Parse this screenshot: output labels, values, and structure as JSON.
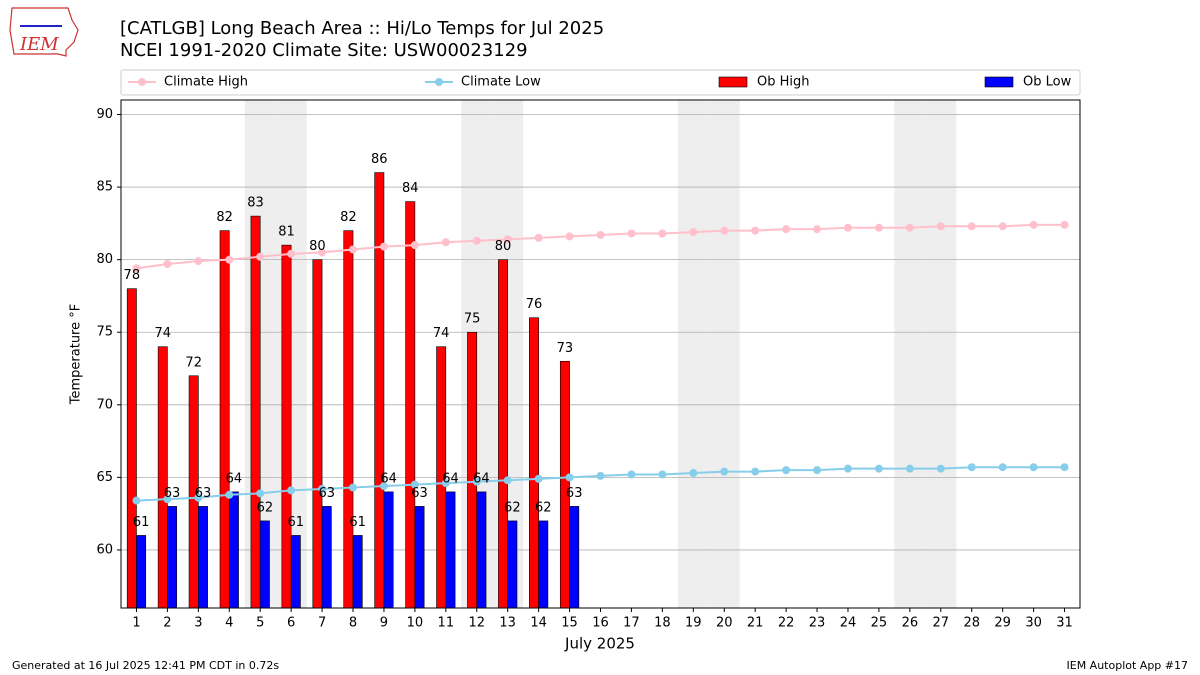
{
  "chart_data": {
    "type": "bar_line",
    "title": "[CATLGB] Long Beach Area :: Hi/Lo Temps for Jul 2025",
    "subtitle": "NCEI 1991-2020 Climate Site: USW00023129",
    "x_label": "July 2025",
    "y_label": "Temperature °F",
    "logo": "IEM",
    "footer_left": "Generated at 16 Jul 2025 12:41 PM CDT in 0.72s",
    "footer_right": "IEM Autoplot App #17",
    "x": [
      1,
      2,
      3,
      4,
      5,
      6,
      7,
      8,
      9,
      10,
      11,
      12,
      13,
      14,
      15,
      16,
      17,
      18,
      19,
      20,
      21,
      22,
      23,
      24,
      25,
      26,
      27,
      28,
      29,
      30,
      31
    ],
    "xlim": [
      0.5,
      31.5
    ],
    "xticks": [
      1,
      2,
      3,
      4,
      5,
      6,
      7,
      8,
      9,
      10,
      11,
      12,
      13,
      14,
      15,
      16,
      17,
      18,
      19,
      20,
      21,
      22,
      23,
      24,
      25,
      26,
      27,
      28,
      29,
      30,
      31
    ],
    "ylim": [
      56,
      91
    ],
    "yticks": [
      60,
      65,
      70,
      75,
      80,
      85,
      90
    ],
    "grid": true,
    "legend": "top",
    "shaded_days": [
      5,
      6,
      12,
      13,
      19,
      20,
      26,
      27
    ],
    "shade_color": "#eeeeee",
    "series": [
      {
        "name": "Climate High",
        "kind": "line",
        "color": "#ffc0cb",
        "values": [
          79.4,
          79.7,
          79.9,
          80.0,
          80.2,
          80.4,
          80.5,
          80.7,
          80.9,
          81.0,
          81.2,
          81.3,
          81.4,
          81.5,
          81.6,
          81.7,
          81.8,
          81.8,
          81.9,
          82.0,
          82.0,
          82.1,
          82.1,
          82.2,
          82.2,
          82.2,
          82.3,
          82.3,
          82.3,
          82.4,
          82.4
        ]
      },
      {
        "name": "Climate Low",
        "kind": "line",
        "color": "#87ceeb",
        "values": [
          63.4,
          63.5,
          63.6,
          63.8,
          63.9,
          64.1,
          64.2,
          64.3,
          64.4,
          64.5,
          64.6,
          64.7,
          64.8,
          64.9,
          65.0,
          65.1,
          65.2,
          65.2,
          65.3,
          65.4,
          65.4,
          65.5,
          65.5,
          65.6,
          65.6,
          65.6,
          65.6,
          65.7,
          65.7,
          65.7,
          65.7
        ]
      },
      {
        "name": "Ob High",
        "kind": "bar",
        "color": "#ff0000",
        "values": [
          78,
          74,
          72,
          82,
          83,
          81,
          80,
          82,
          86,
          84,
          74,
          75,
          80,
          76,
          73,
          null,
          null,
          null,
          null,
          null,
          null,
          null,
          null,
          null,
          null,
          null,
          null,
          null,
          null,
          null,
          null
        ]
      },
      {
        "name": "Ob Low",
        "kind": "bar",
        "color": "#0000ff",
        "values": [
          61,
          63,
          63,
          64,
          62,
          61,
          63,
          61,
          64,
          63,
          64,
          64,
          62,
          62,
          63,
          null,
          null,
          null,
          null,
          null,
          null,
          null,
          null,
          null,
          null,
          null,
          null,
          null,
          null,
          null,
          null
        ]
      }
    ]
  }
}
